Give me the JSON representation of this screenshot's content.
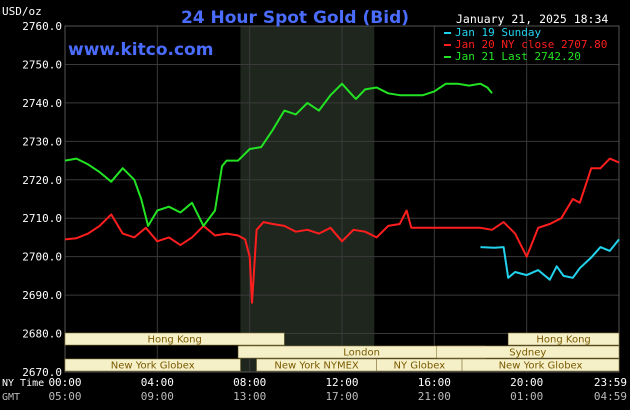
{
  "chart_data": {
    "type": "line",
    "title": "24 Hour Spot Gold (Bid)",
    "watermark": "www.kitco.com",
    "unit_label": "USD/oz",
    "timestamp": "January 21, 2025 18:34",
    "ylim": [
      2670,
      2760
    ],
    "yticks": [
      "2670.0",
      "2680.0",
      "2690.0",
      "2700.0",
      "2710.0",
      "2720.0",
      "2730.0",
      "2740.0",
      "2750.0",
      "2760.0"
    ],
    "xlim": [
      0,
      24
    ],
    "x_axis_rows": [
      {
        "label": "NY Time",
        "ticks": [
          "00:00",
          "04:00",
          "08:00",
          "12:00",
          "16:00",
          "20:00",
          "23:59"
        ]
      },
      {
        "label": "GMT",
        "ticks": [
          "05:00",
          "09:00",
          "13:00",
          "17:00",
          "21:00",
          "01:00",
          "04:59"
        ]
      }
    ],
    "tick_hours": [
      0,
      4,
      8,
      12,
      16,
      20,
      24
    ],
    "shaded_region": [
      7.6,
      13.4
    ],
    "colors": {
      "background": "#000000",
      "title": "#4a6cff",
      "watermark": "#4a6cff",
      "grid": "#3a3a3a",
      "text": "#ffffff",
      "session_fill": "#f5f0c8",
      "session_text": "#7a5a00",
      "shaded": "#1e261e"
    },
    "sessions": [
      {
        "label": "Hong Kong",
        "start": 0,
        "end": 9.5,
        "row": 0
      },
      {
        "label": "Hong Kong",
        "start": 19.2,
        "end": 24,
        "row": 0
      },
      {
        "label": "London",
        "start": 7.5,
        "end": 18.2,
        "row": 1
      },
      {
        "label": "Sydney",
        "start": 16.1,
        "end": 24,
        "row": 1
      },
      {
        "label": "New York Globex",
        "start": 0,
        "end": 7.6,
        "row": 2
      },
      {
        "label": "New York NYMEX",
        "start": 8.3,
        "end": 13.5,
        "row": 2
      },
      {
        "label": "NY Globex",
        "start": 13.5,
        "end": 17.2,
        "row": 2
      },
      {
        "label": "New York Globex",
        "start": 17.2,
        "end": 24,
        "row": 2
      }
    ],
    "series": [
      {
        "name": "Jan 19 Sunday",
        "legend": "Jan 19 Sunday",
        "color": "#22d3ee",
        "x": [
          18,
          18.6,
          19.0,
          19.2,
          19.5,
          20.0,
          20.5,
          21.0,
          21.3,
          21.6,
          22.0,
          22.3,
          22.8,
          23.2,
          23.6,
          24.0
        ],
        "y": [
          2702.5,
          2702.3,
          2702.5,
          2694.5,
          2696.0,
          2695.2,
          2696.5,
          2694.0,
          2697.5,
          2695.0,
          2694.5,
          2697.0,
          2699.8,
          2702.5,
          2701.5,
          2704.5
        ]
      },
      {
        "name": "Jan 20 NY close",
        "legend": "Jan 20 NY close 2707.80",
        "color": "#ff1e1e",
        "x": [
          0,
          0.5,
          1.0,
          1.5,
          2.0,
          2.5,
          3.0,
          3.5,
          4.0,
          4.5,
          5.0,
          5.5,
          6.0,
          6.5,
          7.0,
          7.5,
          7.8,
          8.0,
          8.1,
          8.3,
          8.6,
          9.0,
          9.5,
          10.0,
          10.5,
          11.0,
          11.5,
          12.0,
          12.5,
          13.0,
          13.5,
          14.0,
          14.5,
          14.8,
          15.0,
          16.0,
          17.0,
          18.0,
          18.5,
          19.0,
          19.5,
          20.0,
          20.2,
          20.5,
          21.0,
          21.5,
          22.0,
          22.3,
          22.8,
          23.2,
          23.6,
          24.0
        ],
        "y": [
          2704.5,
          2704.8,
          2706.0,
          2708.0,
          2711.0,
          2706.0,
          2705.0,
          2707.5,
          2704.0,
          2705.0,
          2703.0,
          2705.0,
          2708.0,
          2705.5,
          2706.0,
          2705.5,
          2704.5,
          2700.0,
          2688.0,
          2707.0,
          2709.0,
          2708.5,
          2708.0,
          2706.5,
          2707.0,
          2706.0,
          2707.5,
          2704.0,
          2707.0,
          2706.5,
          2705.0,
          2708.0,
          2708.5,
          2712.0,
          2707.5,
          2707.5,
          2707.5,
          2707.5,
          2707.0,
          2709.0,
          2706.0,
          2700.0,
          2703.0,
          2707.5,
          2708.5,
          2710.0,
          2715.0,
          2714.0,
          2723.0,
          2723.0,
          2725.5,
          2724.5
        ]
      },
      {
        "name": "Jan 21 Last",
        "legend": "Jan 21 Last 2742.20",
        "color": "#22e422",
        "x": [
          0,
          0.5,
          1.0,
          1.5,
          2.0,
          2.5,
          3.0,
          3.3,
          3.6,
          4.0,
          4.5,
          5.0,
          5.5,
          6.0,
          6.5,
          6.8,
          7.0,
          7.5,
          8.0,
          8.5,
          9.0,
          9.5,
          10.0,
          10.5,
          11.0,
          11.5,
          12.0,
          12.3,
          12.6,
          13.0,
          13.5,
          14.0,
          14.5,
          15.0,
          15.5,
          16.0,
          16.5,
          17.0,
          17.5,
          18.0,
          18.3,
          18.5
        ],
        "y": [
          2725.0,
          2725.5,
          2724.0,
          2722.0,
          2719.5,
          2723.0,
          2720.0,
          2715.0,
          2708.0,
          2712.0,
          2713.0,
          2711.5,
          2714.0,
          2708.0,
          2712.0,
          2723.5,
          2725.0,
          2725.0,
          2728.0,
          2728.5,
          2733.0,
          2738.0,
          2737.0,
          2740.0,
          2738.0,
          2742.0,
          2745.0,
          2743.0,
          2741.0,
          2743.5,
          2744.0,
          2742.5,
          2742.0,
          2742.0,
          2742.0,
          2743.0,
          2745.0,
          2745.0,
          2744.5,
          2745.0,
          2744.0,
          2742.5
        ]
      }
    ]
  }
}
